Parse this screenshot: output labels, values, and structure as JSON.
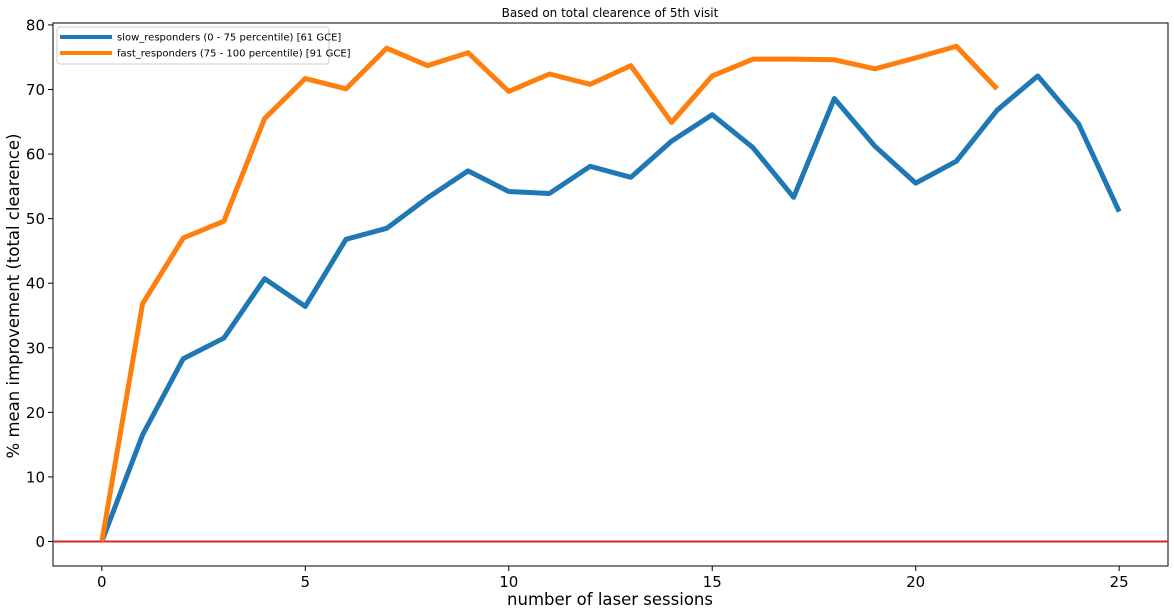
{
  "chart_data": {
    "type": "line",
    "title": "Based on total clearence of 5th visit",
    "xlabel": "number of laser sessions",
    "ylabel": "% mean improvement (total clearence)",
    "xlim": [
      -1.2,
      26.2
    ],
    "ylim": [
      -3.8,
      80.3
    ],
    "xticks": [
      0,
      5,
      10,
      15,
      20,
      25
    ],
    "yticks": [
      0,
      10,
      20,
      30,
      40,
      50,
      60,
      70,
      80
    ],
    "grid": false,
    "legend_position": "top-left",
    "reference_line": {
      "y": 0,
      "color": "#d62728"
    },
    "series": [
      {
        "name": "slow_responders (0 - 75 percentile)  [61 GCE]",
        "color": "#1f77b4",
        "x": [
          0,
          1,
          2,
          3,
          4,
          5,
          6,
          7,
          8,
          9,
          10,
          11,
          12,
          13,
          14,
          15,
          16,
          17,
          18,
          19,
          20,
          21,
          22,
          23,
          24,
          25
        ],
        "values": [
          0,
          16.5,
          28.3,
          31.5,
          40.7,
          36.4,
          46.8,
          48.5,
          53.2,
          57.4,
          54.2,
          53.9,
          58.1,
          56.4,
          62.0,
          66.1,
          61.0,
          53.3,
          68.6,
          61.2,
          55.5,
          58.9,
          66.8,
          72.1,
          64.7,
          51.1
        ]
      },
      {
        "name": "fast_responders (75 - 100 percentile)  [91 GCE]",
        "color": "#ff7f0e",
        "x": [
          0,
          1,
          2,
          3,
          4,
          5,
          6,
          7,
          8,
          9,
          10,
          11,
          12,
          13,
          14,
          15,
          16,
          17,
          18,
          19,
          20,
          21,
          22
        ],
        "values": [
          0,
          36.8,
          47.0,
          49.6,
          65.5,
          71.7,
          70.1,
          76.4,
          73.7,
          75.7,
          69.7,
          72.4,
          70.8,
          73.7,
          64.9,
          72.1,
          74.7,
          74.7,
          74.6,
          73.2,
          74.9,
          76.7,
          70.1
        ]
      }
    ]
  }
}
